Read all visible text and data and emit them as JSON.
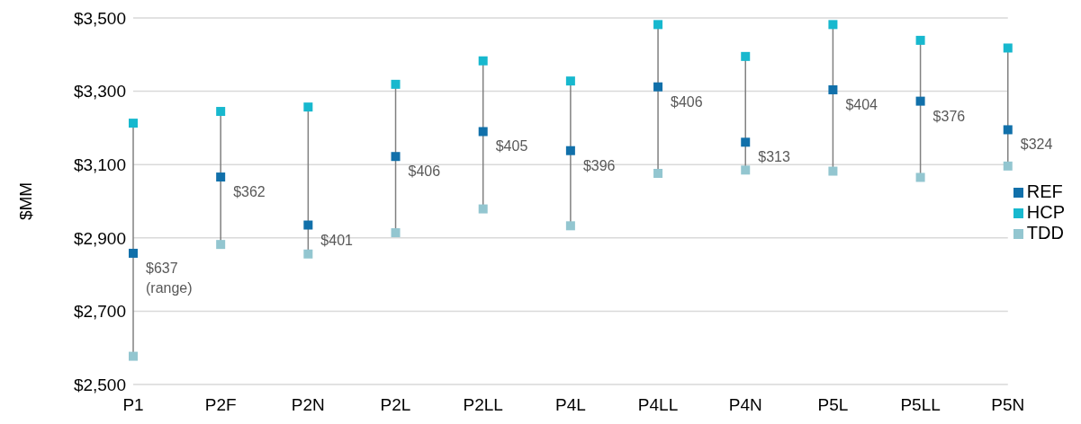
{
  "chart_data": {
    "type": "scatter",
    "ylabel": "$MM",
    "categories": [
      "P1",
      "P2F",
      "P2N",
      "P2L",
      "P2LL",
      "P4L",
      "P4LL",
      "P4N",
      "P5L",
      "P5LL",
      "P5N"
    ],
    "series": [
      {
        "name": "REF",
        "color": "#1170aa",
        "values": [
          2858,
          3066,
          2935,
          3122,
          3190,
          3138,
          3312,
          3161,
          3304,
          3273,
          3195
        ]
      },
      {
        "name": "HCP",
        "color": "#17b8ce",
        "values": [
          3213,
          3245,
          3257,
          3319,
          3383,
          3328,
          3482,
          3395,
          3482,
          3439,
          3418
        ]
      },
      {
        "name": "TDD",
        "color": "#93c6d0",
        "values": [
          2577,
          2882,
          2856,
          2914,
          2979,
          2933,
          3076,
          3085,
          3082,
          3065,
          3096
        ]
      }
    ],
    "annotations": [
      {
        "text": "$637 (range)",
        "x": "P1",
        "y": 2858
      },
      {
        "text": "$362",
        "x": "P2F",
        "y": 3066
      },
      {
        "text": "$401",
        "x": "P2N",
        "y": 2935
      },
      {
        "text": "$406",
        "x": "P2L",
        "y": 3122
      },
      {
        "text": "$405",
        "x": "P2LL",
        "y": 3190
      },
      {
        "text": "$396",
        "x": "P4L",
        "y": 3138
      },
      {
        "text": "$406",
        "x": "P4LL",
        "y": 3312
      },
      {
        "text": "$313",
        "x": "P4N",
        "y": 3161
      },
      {
        "text": "$404",
        "x": "P5L",
        "y": 3304
      },
      {
        "text": "$376",
        "x": "P5LL",
        "y": 3273
      },
      {
        "text": "$324",
        "x": "P5N",
        "y": 3195
      }
    ],
    "ylim": [
      2500,
      3500
    ],
    "yticks": [
      {
        "value": 2500,
        "label": "$2,500"
      },
      {
        "value": 2700,
        "label": "$2,700"
      },
      {
        "value": 2900,
        "label": "$2,900"
      },
      {
        "value": 3100,
        "label": "$3,100"
      },
      {
        "value": 3300,
        "label": "$3,300"
      },
      {
        "value": 3500,
        "label": "$3,500"
      }
    ],
    "grid": "y",
    "legend": "right",
    "marker": "square"
  }
}
